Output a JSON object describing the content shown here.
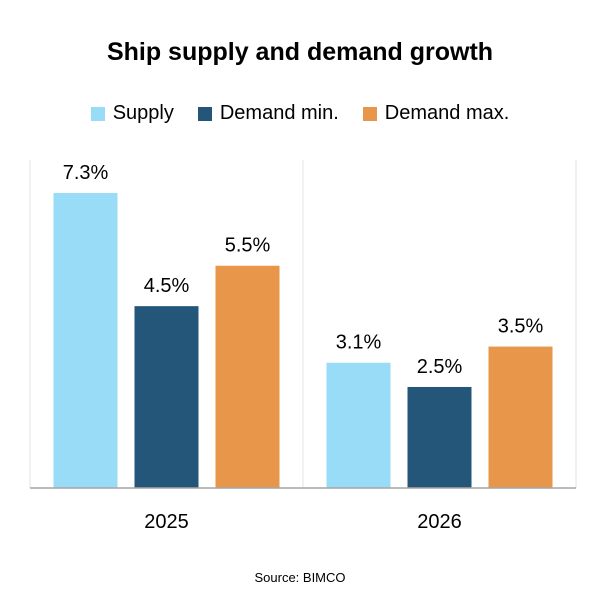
{
  "chart_data": {
    "type": "bar",
    "title": "Ship supply and demand growth",
    "categories": [
      "2025",
      "2026"
    ],
    "series": [
      {
        "name": "Supply",
        "values": [
          7.3,
          3.1
        ],
        "labels": [
          "7.3%",
          "3.1%"
        ],
        "color": "#99dcf7"
      },
      {
        "name": "Demand min.",
        "values": [
          4.5,
          2.5
        ],
        "labels": [
          "4.5%",
          "2.5%"
        ],
        "color": "#235678"
      },
      {
        "name": "Demand max.",
        "values": [
          5.5,
          3.5
        ],
        "labels": [
          "5.5%",
          "3.5%"
        ],
        "color": "#e8964a"
      }
    ],
    "ylim": [
      0,
      7.3
    ],
    "grid": false,
    "legend": "top-center",
    "source": "Source: BIMCO"
  }
}
